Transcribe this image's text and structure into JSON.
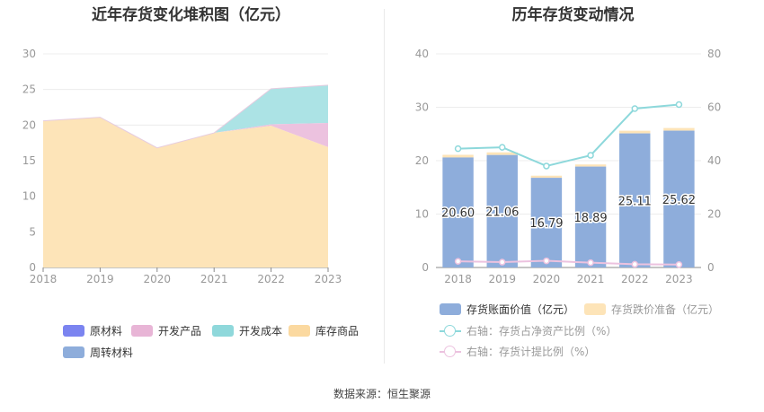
{
  "source": "数据来源：恒生聚源",
  "chart_data": [
    {
      "type": "area",
      "stacked": true,
      "title": "近年存货变化堆积图（亿元）",
      "x": [
        "2018",
        "2019",
        "2020",
        "2021",
        "2022",
        "2023"
      ],
      "ylim": [
        0,
        30
      ],
      "yticks": [
        0,
        5,
        10,
        15,
        20,
        25,
        30
      ],
      "series": [
        {
          "name": "原材料",
          "color": "#7b84f0",
          "values": [
            0,
            0,
            0,
            0,
            0,
            0
          ]
        },
        {
          "name": "开发产品",
          "color": "#ecc2df",
          "values": [
            0,
            0,
            0,
            0,
            0.2,
            3.4
          ]
        },
        {
          "name": "开发成本",
          "color": "#ace3e5",
          "values": [
            0,
            0,
            0,
            0,
            5.0,
            5.3
          ]
        },
        {
          "name": "库存商品",
          "color": "#fde4b8",
          "values": [
            20.6,
            21.1,
            16.8,
            18.9,
            19.9,
            16.9
          ]
        },
        {
          "name": "周转材料",
          "color": "#8eaddb",
          "values": [
            0,
            0,
            0,
            0,
            0,
            0
          ]
        }
      ],
      "legend": [
        {
          "name": "原材料",
          "color": "#7b84f0"
        },
        {
          "name": "开发产品",
          "color": "#e8b5d6"
        },
        {
          "name": "开发成本",
          "color": "#8fd8db"
        },
        {
          "name": "库存商品",
          "color": "#fbd9a0"
        },
        {
          "name": "周转材料",
          "color": "#8eaddb"
        }
      ]
    },
    {
      "type": "bar",
      "title": "历年存货变动情况",
      "x": [
        "2018",
        "2019",
        "2020",
        "2021",
        "2022",
        "2023"
      ],
      "ylim_left": [
        0,
        40
      ],
      "yticks_left": [
        0,
        10,
        20,
        30,
        40
      ],
      "ylim_right": [
        0,
        80
      ],
      "yticks_right": [
        0,
        20,
        40,
        60,
        80
      ],
      "bar_series": {
        "name": "存货账面价值（亿元）",
        "color": "#8eaddb",
        "values": [
          20.6,
          21.06,
          16.79,
          18.89,
          25.11,
          25.62
        ],
        "labels": [
          "20.60",
          "21.06",
          "16.79",
          "18.89",
          "25.11",
          "25.62"
        ]
      },
      "reserve_series": {
        "name": "存货跌价准备（亿元）",
        "color": "#fde4b8",
        "values": [
          0.5,
          0.5,
          0.4,
          0.4,
          0.5,
          0.5
        ]
      },
      "line_series": [
        {
          "name": "右轴：存货占净资产比例（%）",
          "color": "#8dd8db",
          "axis": "right",
          "values": [
            44.5,
            45.0,
            38.0,
            42.0,
            59.5,
            61.0
          ]
        },
        {
          "name": "右轴：存货计提比例（%）",
          "color": "#ecc2df",
          "axis": "right",
          "values": [
            2.3,
            2.0,
            2.5,
            1.8,
            1.2,
            1.1
          ]
        }
      ]
    }
  ]
}
